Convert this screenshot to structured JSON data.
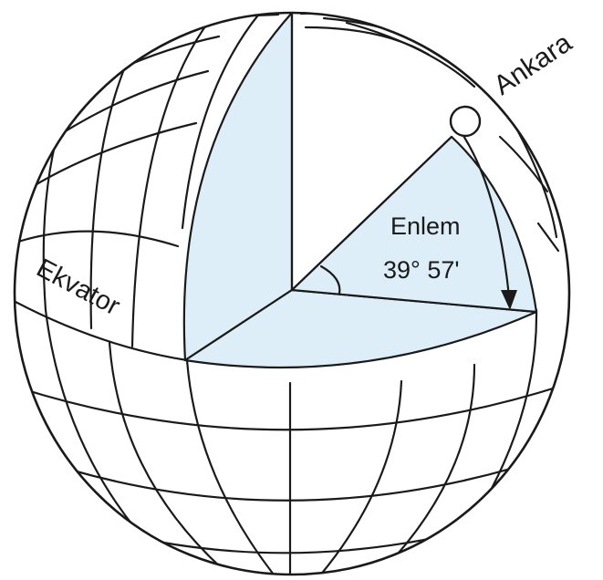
{
  "labels": {
    "city": "Ankara",
    "equator": "Ekvator",
    "latitude_title": "Enlem",
    "latitude_value": "39° 57'"
  },
  "colors": {
    "cut_face": "#ddeef8",
    "ink": "#1a1a1a",
    "background": "#ffffff"
  }
}
